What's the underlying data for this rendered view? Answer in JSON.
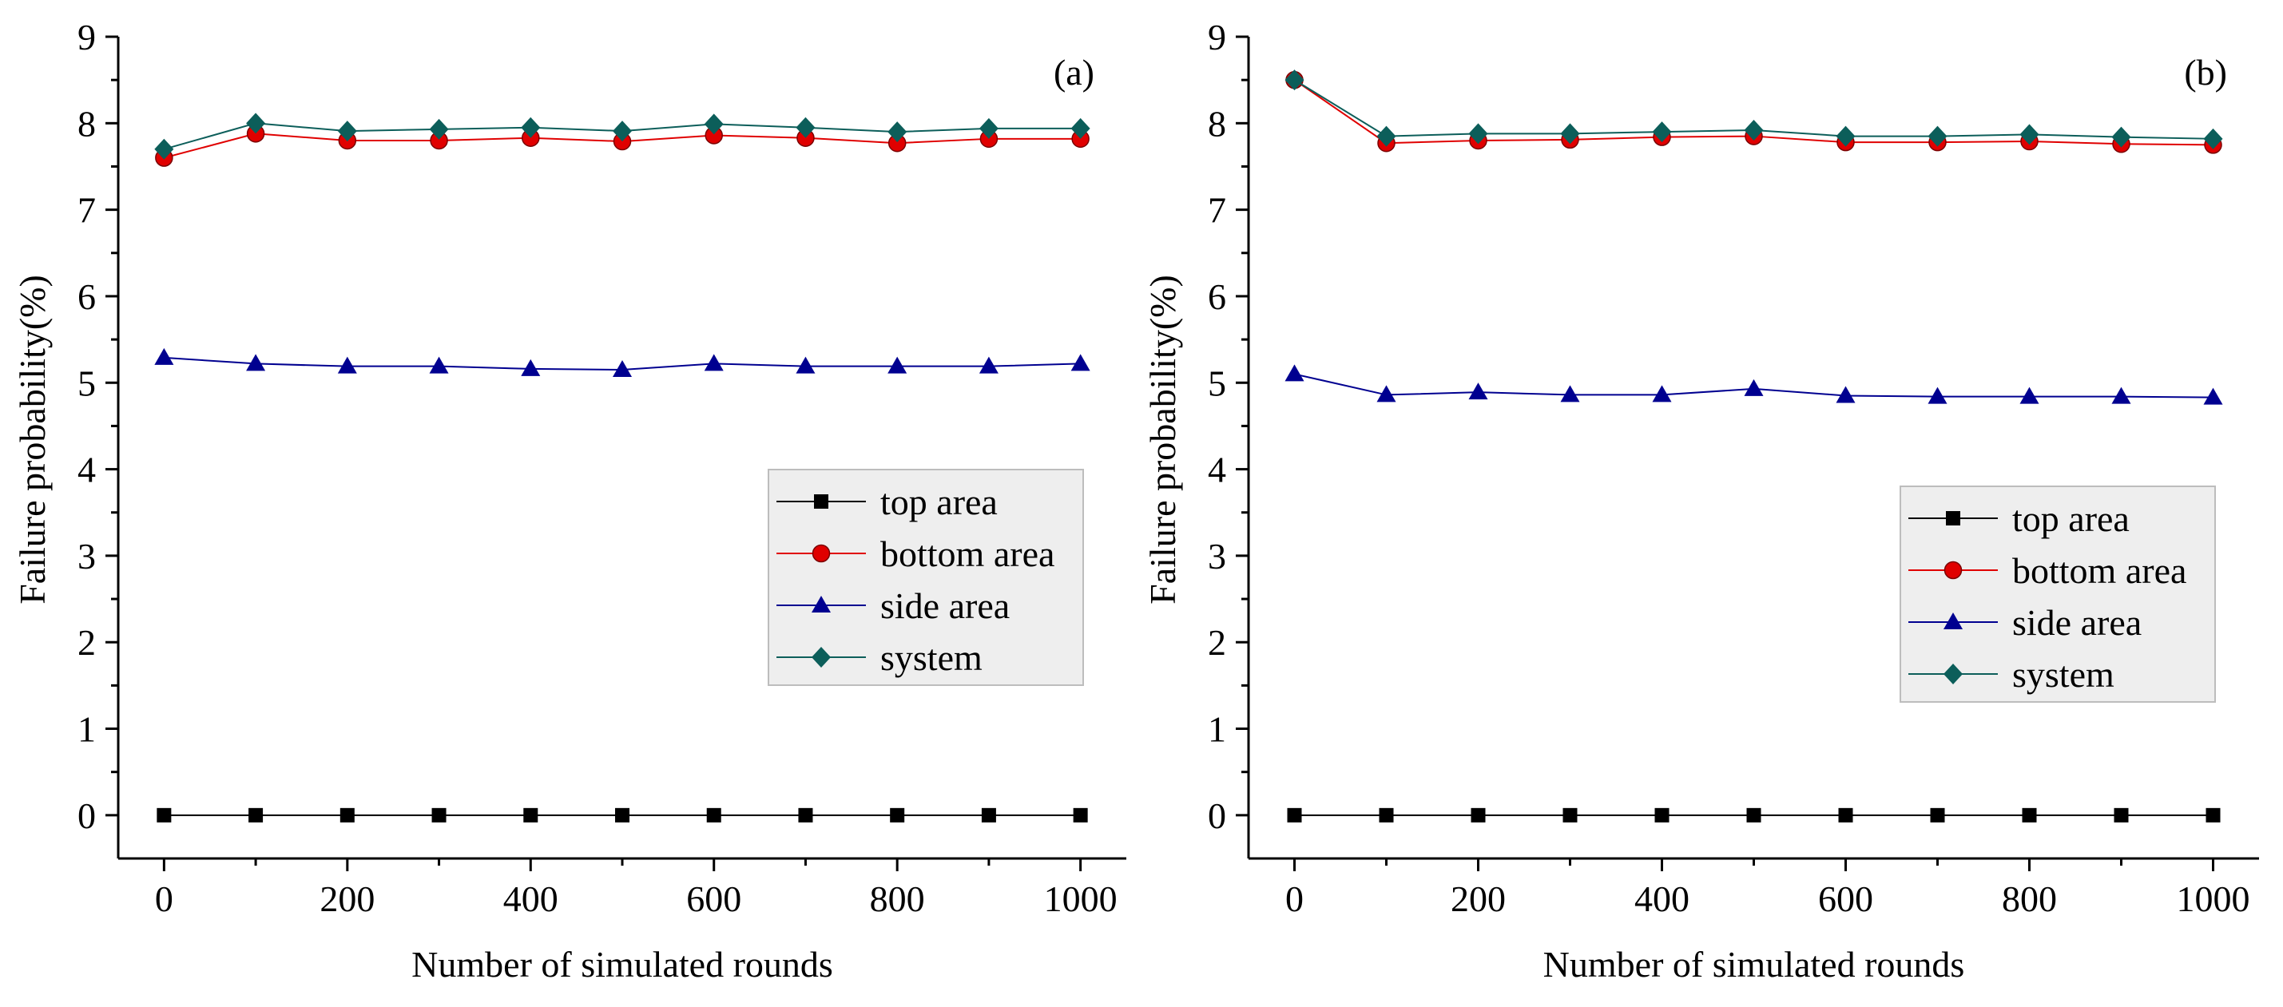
{
  "chart_data": [
    {
      "type": "line",
      "panel_label": "(a)",
      "xlabel": "Number of simulated rounds",
      "ylabel": "Failure probability(%)",
      "x": [
        0,
        100,
        200,
        300,
        400,
        500,
        600,
        700,
        800,
        900,
        1000
      ],
      "xlim": [
        -50,
        1050
      ],
      "ylim": [
        -0.5,
        9
      ],
      "xticks": [
        "0",
        "200",
        "400",
        "600",
        "800",
        "1000"
      ],
      "yticks": [
        "0",
        "1",
        "2",
        "3",
        "4",
        "5",
        "6",
        "7",
        "8",
        "9"
      ],
      "legend_position": "center-right",
      "series": [
        {
          "name": "top area",
          "color": "#000000",
          "marker": "square",
          "values": [
            0,
            0,
            0,
            0,
            0,
            0,
            0,
            0,
            0,
            0,
            0
          ]
        },
        {
          "name": "bottom area",
          "color": "#e00000",
          "marker": "circle",
          "values": [
            7.6,
            7.88,
            7.8,
            7.8,
            7.83,
            7.79,
            7.86,
            7.83,
            7.77,
            7.82,
            7.82
          ]
        },
        {
          "name": "side area",
          "color": "#000090",
          "marker": "triangle",
          "values": [
            5.29,
            5.22,
            5.19,
            5.19,
            5.16,
            5.15,
            5.22,
            5.19,
            5.19,
            5.19,
            5.22
          ]
        },
        {
          "name": "system",
          "color": "#0c5e5a",
          "marker": "diamond",
          "values": [
            7.7,
            8.0,
            7.91,
            7.93,
            7.95,
            7.91,
            7.99,
            7.95,
            7.9,
            7.94,
            7.94
          ]
        }
      ]
    },
    {
      "type": "line",
      "panel_label": "(b)",
      "xlabel": "Number of simulated rounds",
      "ylabel": "Failure probability(%)",
      "x": [
        0,
        100,
        200,
        300,
        400,
        500,
        600,
        700,
        800,
        900,
        1000
      ],
      "xlim": [
        -50,
        1050
      ],
      "ylim": [
        -0.5,
        9
      ],
      "xticks": [
        "0",
        "200",
        "400",
        "600",
        "800",
        "1000"
      ],
      "yticks": [
        "0",
        "1",
        "2",
        "3",
        "4",
        "5",
        "6",
        "7",
        "8",
        "9"
      ],
      "legend_position": "center-right",
      "series": [
        {
          "name": "top area",
          "color": "#000000",
          "marker": "square",
          "values": [
            0,
            0,
            0,
            0,
            0,
            0,
            0,
            0,
            0,
            0,
            0
          ]
        },
        {
          "name": "bottom area",
          "color": "#e00000",
          "marker": "circle",
          "values": [
            8.5,
            7.77,
            7.8,
            7.81,
            7.84,
            7.85,
            7.78,
            7.78,
            7.79,
            7.76,
            7.75
          ]
        },
        {
          "name": "side area",
          "color": "#000090",
          "marker": "triangle",
          "values": [
            5.1,
            4.86,
            4.89,
            4.86,
            4.86,
            4.93,
            4.85,
            4.84,
            4.84,
            4.84,
            4.83
          ]
        },
        {
          "name": "system",
          "color": "#0c5e5a",
          "marker": "diamond",
          "values": [
            8.5,
            7.85,
            7.88,
            7.88,
            7.9,
            7.92,
            7.85,
            7.85,
            7.87,
            7.84,
            7.82
          ]
        }
      ]
    }
  ]
}
